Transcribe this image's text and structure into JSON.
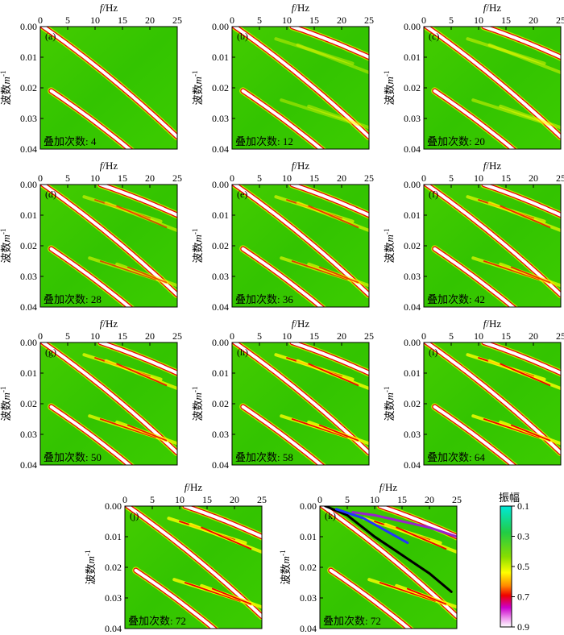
{
  "colors": {
    "background": "#33cc00",
    "mid": "#99ee00",
    "yellow": "#ffff00",
    "orange": "#ff8800",
    "red": "#ee0000",
    "magenta": "#cc00cc",
    "white": "#ffffff",
    "teal": "#00e0c0",
    "path_black": "#000000",
    "path_blue": "#2233ff",
    "path_purple": "#9922cc"
  },
  "chart_data": {
    "type": "heatmap",
    "xlabel_var": "f",
    "xlabel_unit": "/Hz",
    "ylabel": "波数",
    "ylabel_unit": "m",
    "ylabel_exp": "-1",
    "xlim": [
      0,
      25
    ],
    "ylim": [
      0,
      0.04
    ],
    "x_ticks": [
      "0",
      "5",
      "10",
      "15",
      "20",
      "25"
    ],
    "y_ticks": [
      "0.00",
      "0.01",
      "0.02",
      "0.03",
      "0.04"
    ],
    "stack_label_prefix": "叠加次数: ",
    "panels": [
      {
        "id": "(a)",
        "stack_count": 4
      },
      {
        "id": "(b)",
        "stack_count": 12
      },
      {
        "id": "(c)",
        "stack_count": 20
      },
      {
        "id": "(d)",
        "stack_count": 28
      },
      {
        "id": "(e)",
        "stack_count": 36
      },
      {
        "id": "(f)",
        "stack_count": 42
      },
      {
        "id": "(g)",
        "stack_count": 50
      },
      {
        "id": "(h)",
        "stack_count": 58
      },
      {
        "id": "(i)",
        "stack_count": 64
      },
      {
        "id": "(j)",
        "stack_count": 72
      },
      {
        "id": "(k)",
        "stack_count": 72
      }
    ],
    "ridges": [
      {
        "f_start": 0.5,
        "f_end": 25,
        "k_start": 0.0,
        "k_end": 0.036
      },
      {
        "f_start": 2.0,
        "f_end": 24,
        "k_start": 0.021,
        "k_end": 0.052
      },
      {
        "f_start": 11.0,
        "f_end": 25,
        "k_start": 0.0,
        "k_end": 0.01
      }
    ],
    "k_picks": [
      {
        "color": "black",
        "points": [
          [
            1,
            0.0
          ],
          [
            5,
            0.003
          ],
          [
            10,
            0.01
          ],
          [
            15,
            0.016
          ],
          [
            20,
            0.022
          ],
          [
            24,
            0.028
          ]
        ]
      },
      {
        "color": "blue",
        "points": [
          [
            3,
            0.001
          ],
          [
            8,
            0.004
          ],
          [
            12,
            0.008
          ],
          [
            16,
            0.012
          ]
        ]
      },
      {
        "color": "purple",
        "points": [
          [
            6,
            0.002
          ],
          [
            10,
            0.003
          ],
          [
            15,
            0.005
          ],
          [
            20,
            0.007
          ],
          [
            25,
            0.01
          ]
        ]
      }
    ],
    "colorbar": {
      "title": "振幅",
      "ticks": [
        "0.1",
        "0.3",
        "0.5",
        "0.7",
        "0.9"
      ],
      "range": [
        0.1,
        0.9
      ]
    }
  }
}
